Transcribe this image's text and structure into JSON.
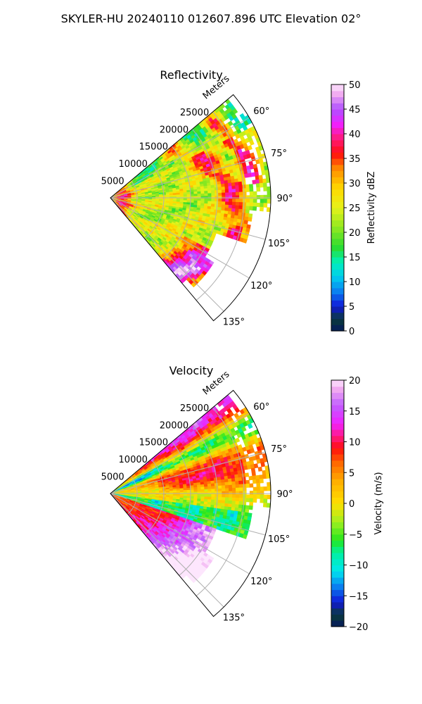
{
  "figure": {
    "suptitle": "SKYLER-HU  20240110  012607.896 UTC Elevation 02°"
  },
  "chart_data": [
    {
      "type": "heatmap",
      "projection": "polar-sector",
      "title": "Reflectivity",
      "range_axis_label": "Meters",
      "range_ticks": [
        5000,
        10000,
        15000,
        20000,
        25000
      ],
      "range_tick_labels": [
        "5000",
        "10000",
        "15000",
        "20000",
        "25000"
      ],
      "range_lim": [
        0,
        30000
      ],
      "azimuth_ticks": [
        60,
        75,
        90,
        105,
        120,
        135
      ],
      "azimuth_tick_labels": [
        "60°",
        "75°",
        "90°",
        "105°",
        "120°",
        "135°"
      ],
      "azimuth_lim": [
        50,
        140
      ],
      "grid": true,
      "colorbar": {
        "label": "Reflectivity dBZ",
        "min": 0,
        "max": 50,
        "ticks": [
          0,
          5,
          10,
          15,
          20,
          25,
          30,
          35,
          40,
          45,
          50
        ],
        "tick_labels": [
          "0",
          "5",
          "10",
          "15",
          "20",
          "25",
          "30",
          "35",
          "40",
          "45",
          "50"
        ],
        "stops": [
          {
            "v": 0,
            "c": "#061a5c"
          },
          {
            "v": 2.5,
            "c": "#0a3b3a"
          },
          {
            "v": 5,
            "c": "#1016d8"
          },
          {
            "v": 8,
            "c": "#0a7ff0"
          },
          {
            "v": 11,
            "c": "#00cdef"
          },
          {
            "v": 14,
            "c": "#00f0b8"
          },
          {
            "v": 17,
            "c": "#2bdc30"
          },
          {
            "v": 21,
            "c": "#8fe820"
          },
          {
            "v": 25,
            "c": "#e6f21a"
          },
          {
            "v": 29,
            "c": "#ffd800"
          },
          {
            "v": 33,
            "c": "#ff8a00"
          },
          {
            "v": 36,
            "c": "#ff0d0d"
          },
          {
            "v": 39,
            "c": "#ff1a78"
          },
          {
            "v": 42,
            "c": "#f020ff"
          },
          {
            "v": 45,
            "c": "#b050ff"
          },
          {
            "v": 48,
            "c": "#f0a8f0"
          },
          {
            "v": 50,
            "c": "#fde6fd"
          }
        ]
      }
    },
    {
      "type": "heatmap",
      "projection": "polar-sector",
      "title": "Velocity",
      "range_axis_label": "Meters",
      "range_ticks": [
        5000,
        10000,
        15000,
        20000,
        25000
      ],
      "range_tick_labels": [
        "5000",
        "10000",
        "15000",
        "20000",
        "25000"
      ],
      "range_lim": [
        0,
        30000
      ],
      "azimuth_ticks": [
        60,
        75,
        90,
        105,
        120,
        135
      ],
      "azimuth_tick_labels": [
        "60°",
        "75°",
        "90°",
        "105°",
        "120°",
        "135°"
      ],
      "azimuth_lim": [
        50,
        140
      ],
      "grid": true,
      "colorbar": {
        "label": "Velocity (m/s)",
        "min": -20,
        "max": 20,
        "ticks": [
          -20,
          -15,
          -10,
          -5,
          0,
          5,
          10,
          15,
          20
        ],
        "tick_labels": [
          "−20",
          "−15",
          "−10",
          "−5",
          "0",
          "5",
          "10",
          "15",
          "20"
        ],
        "stops": [
          {
            "v": -20,
            "c": "#061a5c"
          },
          {
            "v": -18,
            "c": "#0a3b3a"
          },
          {
            "v": -16,
            "c": "#1016d8"
          },
          {
            "v": -13.5,
            "c": "#0a7ff0"
          },
          {
            "v": -11,
            "c": "#00e6ef"
          },
          {
            "v": -8,
            "c": "#00f0a0"
          },
          {
            "v": -6,
            "c": "#22e61e"
          },
          {
            "v": -3,
            "c": "#a0f020"
          },
          {
            "v": 0,
            "c": "#ffe000"
          },
          {
            "v": 3.5,
            "c": "#ffb000"
          },
          {
            "v": 6.5,
            "c": "#ff6a00"
          },
          {
            "v": 9,
            "c": "#ff0d0d"
          },
          {
            "v": 11,
            "c": "#ff1a8a"
          },
          {
            "v": 13,
            "c": "#f020ff"
          },
          {
            "v": 16,
            "c": "#c060ff"
          },
          {
            "v": 18.5,
            "c": "#f0a8f0"
          },
          {
            "v": 20,
            "c": "#fde6fd"
          }
        ]
      }
    }
  ]
}
